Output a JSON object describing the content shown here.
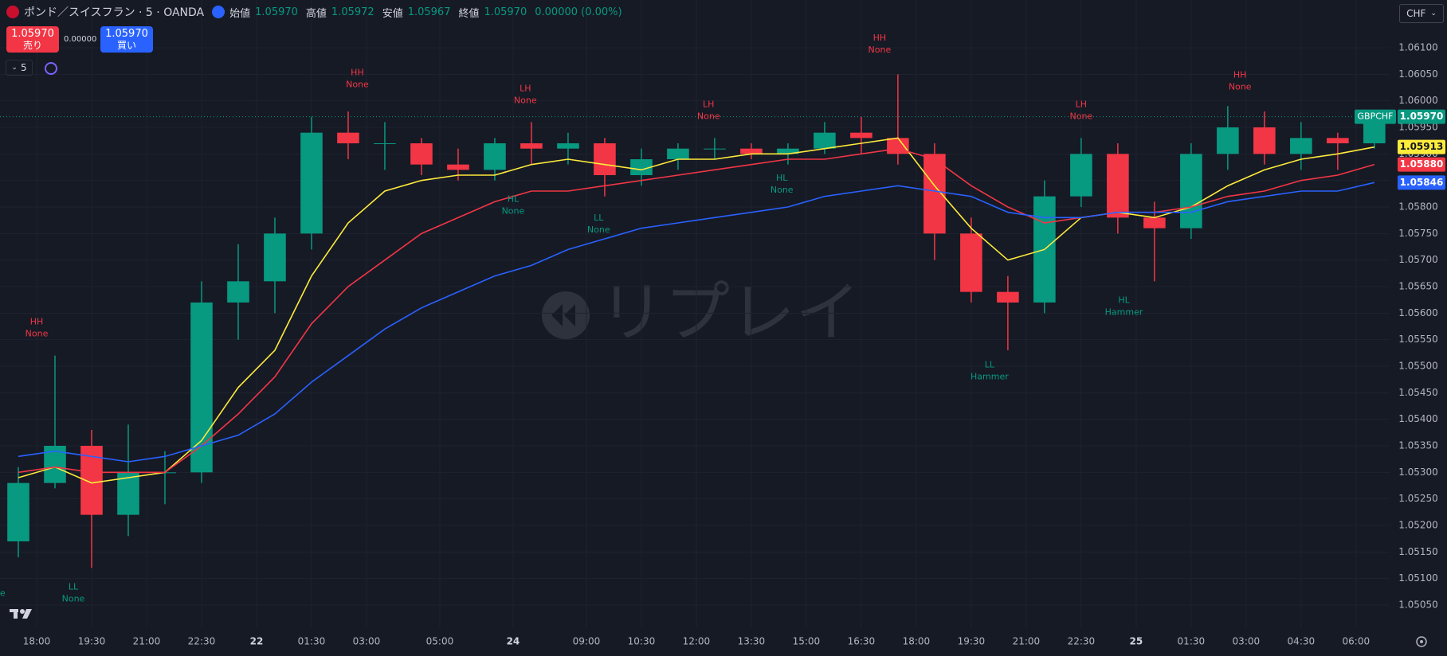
{
  "header": {
    "symbol": "ポンド／スイスフラン · 5 · OANDA",
    "ohlc": [
      {
        "name": "始値",
        "value": "1.05970"
      },
      {
        "name": "高値",
        "value": "1.05972"
      },
      {
        "name": "安値",
        "value": "1.05967"
      },
      {
        "name": "終値",
        "value": "1.05970"
      }
    ],
    "change": "0.00000 (0.00%)",
    "sell": {
      "price": "1.05970",
      "label": "売り"
    },
    "spread": "0.00000",
    "buy": {
      "price": "1.05970",
      "label": "買い"
    },
    "indicators": "5",
    "currency": "CHF"
  },
  "watermark": "リプレイ",
  "chart_data": {
    "type": "candlestick",
    "x": [
      6,
      18,
      30,
      42,
      54,
      66,
      78,
      90,
      102,
      114,
      126,
      138,
      150,
      162,
      174,
      186,
      198,
      210,
      222,
      234,
      246,
      258,
      270,
      282,
      294,
      306,
      318,
      330,
      342,
      354,
      366,
      378,
      390,
      402,
      414,
      426,
      438,
      450
    ],
    "open": [
      1.0517,
      1.0528,
      1.0535,
      1.0522,
      1.053,
      1.053,
      1.0562,
      1.0566,
      1.0575,
      1.0594,
      1.0592,
      1.0592,
      1.0588,
      1.0587,
      1.0592,
      1.0591,
      1.0592,
      1.0586,
      1.0589,
      1.0591,
      1.0591,
      1.059,
      1.0591,
      1.0594,
      1.0593,
      1.059,
      1.0575,
      1.0564,
      1.0562,
      1.0582,
      1.059,
      1.0578,
      1.0576,
      1.059,
      1.0595,
      1.059,
      1.0593,
      1.0592
    ],
    "high": [
      1.0531,
      1.0552,
      1.0538,
      1.0539,
      1.0534,
      1.0566,
      1.0573,
      1.0578,
      1.0597,
      1.0598,
      1.0596,
      1.0593,
      1.0591,
      1.0593,
      1.0596,
      1.0594,
      1.0593,
      1.0591,
      1.0592,
      1.0593,
      1.0592,
      1.0592,
      1.0596,
      1.0597,
      1.0605,
      1.0592,
      1.0578,
      1.0567,
      1.0585,
      1.0593,
      1.0592,
      1.0581,
      1.0592,
      1.0599,
      1.0598,
      1.0596,
      1.0594,
      1.0598
    ],
    "low": [
      1.0514,
      1.0527,
      1.0512,
      1.0518,
      1.0524,
      1.0528,
      1.0555,
      1.056,
      1.0572,
      1.0589,
      1.0587,
      1.0586,
      1.0585,
      1.0585,
      1.0588,
      1.0588,
      1.0582,
      1.0584,
      1.0587,
      1.0589,
      1.0589,
      1.0588,
      1.059,
      1.059,
      1.0588,
      1.057,
      1.0562,
      1.0553,
      1.056,
      1.058,
      1.0575,
      1.0566,
      1.0574,
      1.0587,
      1.0588,
      1.0587,
      1.0587,
      1.0591
    ],
    "close": [
      1.0528,
      1.0535,
      1.0522,
      1.053,
      1.053,
      1.0562,
      1.0566,
      1.0575,
      1.0594,
      1.0592,
      1.0592,
      1.0588,
      1.0587,
      1.0592,
      1.0591,
      1.0592,
      1.0586,
      1.0589,
      1.0591,
      1.0591,
      1.059,
      1.0591,
      1.0594,
      1.0593,
      1.059,
      1.0575,
      1.0564,
      1.0562,
      1.0582,
      1.059,
      1.0578,
      1.0576,
      1.059,
      1.0595,
      1.059,
      1.0593,
      1.0592,
      1.0597
    ],
    "up_color": "#089981",
    "down_color": "#f23645",
    "lines": [
      {
        "color": "#ffeb3b",
        "values": [
          1.0529,
          1.0531,
          1.0528,
          1.0529,
          1.053,
          1.0536,
          1.0546,
          1.0553,
          1.0567,
          1.0577,
          1.0583,
          1.0585,
          1.0586,
          1.0586,
          1.0588,
          1.0589,
          1.0588,
          1.0587,
          1.0589,
          1.0589,
          1.059,
          1.059,
          1.0591,
          1.0592,
          1.0593,
          1.0584,
          1.0576,
          1.057,
          1.0572,
          1.0578,
          1.0579,
          1.0578,
          1.058,
          1.0584,
          1.0587,
          1.0589,
          1.059,
          1.05913
        ],
        "badge": {
          "value": 1.05913,
          "label": "1.05913"
        }
      },
      {
        "color": "#f23645",
        "values": [
          1.053,
          1.0531,
          1.053,
          1.053,
          1.053,
          1.0535,
          1.0541,
          1.0548,
          1.0558,
          1.0565,
          1.057,
          1.0575,
          1.0578,
          1.0581,
          1.0583,
          1.0583,
          1.0584,
          1.0585,
          1.0586,
          1.0587,
          1.0588,
          1.0589,
          1.0589,
          1.059,
          1.0591,
          1.0589,
          1.0584,
          1.058,
          1.0577,
          1.0578,
          1.0579,
          1.0579,
          1.058,
          1.0582,
          1.0583,
          1.0585,
          1.0586,
          1.0588
        ],
        "badge": {
          "value": 1.0588,
          "label": "1.05880"
        }
      },
      {
        "color": "#2962ff",
        "values": [
          1.0533,
          1.0534,
          1.0533,
          1.0532,
          1.0533,
          1.0535,
          1.0537,
          1.0541,
          1.0547,
          1.0552,
          1.0557,
          1.0561,
          1.0564,
          1.0567,
          1.0569,
          1.0572,
          1.0574,
          1.0576,
          1.0577,
          1.0578,
          1.0579,
          1.058,
          1.0582,
          1.0583,
          1.0584,
          1.0583,
          1.0582,
          1.0579,
          1.0578,
          1.0578,
          1.0579,
          1.0579,
          1.0579,
          1.0581,
          1.0582,
          1.0583,
          1.0583,
          1.05846
        ],
        "badge": {
          "value": 1.05846,
          "label": "1.05846"
        }
      }
    ],
    "current_price": {
      "symbol": "GBPCHF",
      "value": 1.0597,
      "label": "1.05970",
      "color": "#089981"
    },
    "pivots": [
      {
        "label": "LL",
        "pattern": "None",
        "x": -2,
        "price": 1.0513
      },
      {
        "label": "HH",
        "pattern": "None",
        "x": 12,
        "price": 1.0552
      },
      {
        "label": "LL",
        "pattern": "None",
        "x": 24,
        "price": 1.0512
      },
      {
        "label": "HH",
        "pattern": "None",
        "x": 117,
        "price": 1.0599
      },
      {
        "label": "HL",
        "pattern": "None",
        "x": 168,
        "price": 1.0585
      },
      {
        "label": "LH",
        "pattern": "None",
        "x": 172,
        "price": 1.0596
      },
      {
        "label": "LL",
        "pattern": "None",
        "x": 196,
        "price": 1.05815
      },
      {
        "label": "LH",
        "pattern": "None",
        "x": 232,
        "price": 1.0593
      },
      {
        "label": "HL",
        "pattern": "None",
        "x": 256,
        "price": 1.0589
      },
      {
        "label": "HH",
        "pattern": "None",
        "x": 288,
        "price": 1.06055
      },
      {
        "label": "LL",
        "pattern": "Hammer",
        "x": 324,
        "price": 1.05538
      },
      {
        "label": "LH",
        "pattern": "None",
        "x": 354,
        "price": 1.0593
      },
      {
        "label": "HL",
        "pattern": "Hammer",
        "x": 368,
        "price": 1.0566
      },
      {
        "label": "HH",
        "pattern": "None",
        "x": 406,
        "price": 1.05985
      }
    ],
    "xlim": [
      0,
      455
    ],
    "ylim": [
      1.05008,
      1.0619
    ],
    "xticks": [
      {
        "value": 12,
        "label": "18:00"
      },
      {
        "value": 30,
        "label": "19:30"
      },
      {
        "value": 48,
        "label": "21:00"
      },
      {
        "value": 66,
        "label": "22:30"
      },
      {
        "value": 84,
        "label": "22"
      },
      {
        "value": 102,
        "label": "01:30"
      },
      {
        "value": 120,
        "label": "03:00"
      },
      {
        "value": 144,
        "label": "05:00"
      },
      {
        "value": 168,
        "label": "24"
      },
      {
        "value": 192,
        "label": "09:00"
      },
      {
        "value": 210,
        "label": "10:30"
      },
      {
        "value": 228,
        "label": "12:00"
      },
      {
        "value": 246,
        "label": "13:30"
      },
      {
        "value": 264,
        "label": "15:00"
      },
      {
        "value": 282,
        "label": "16:30"
      },
      {
        "value": 300,
        "label": "18:00"
      },
      {
        "value": 318,
        "label": "19:30"
      },
      {
        "value": 336,
        "label": "21:00"
      },
      {
        "value": 354,
        "label": "22:30"
      },
      {
        "value": 372,
        "label": "25"
      },
      {
        "value": 390,
        "label": "01:30"
      },
      {
        "value": 408,
        "label": "03:00"
      },
      {
        "value": 426,
        "label": "04:30"
      },
      {
        "value": 444,
        "label": "06:00"
      }
    ],
    "yticks": [
      {
        "value": 1.061,
        "label": "1.06100"
      },
      {
        "value": 1.0605,
        "label": "1.06050"
      },
      {
        "value": 1.06,
        "label": "1.06000"
      },
      {
        "value": 1.0595,
        "label": "1.05950"
      },
      {
        "value": 1.059,
        "label": "1.05900"
      },
      {
        "value": 1.0585,
        "label": "1.05850"
      },
      {
        "value": 1.058,
        "label": "1.05800"
      },
      {
        "value": 1.0575,
        "label": "1.05750"
      },
      {
        "value": 1.057,
        "label": "1.05700"
      },
      {
        "value": 1.0565,
        "label": "1.05650"
      },
      {
        "value": 1.056,
        "label": "1.05600"
      },
      {
        "value": 1.0555,
        "label": "1.05550"
      },
      {
        "value": 1.055,
        "label": "1.05500"
      },
      {
        "value": 1.0545,
        "label": "1.05450"
      },
      {
        "value": 1.054,
        "label": "1.05400"
      },
      {
        "value": 1.0535,
        "label": "1.05350"
      },
      {
        "value": 1.053,
        "label": "1.05300"
      },
      {
        "value": 1.0525,
        "label": "1.05250"
      },
      {
        "value": 1.052,
        "label": "1.05200"
      },
      {
        "value": 1.0515,
        "label": "1.05150"
      },
      {
        "value": 1.051,
        "label": "1.05100"
      },
      {
        "value": 1.0505,
        "label": "1.05050"
      }
    ],
    "grid": true
  }
}
